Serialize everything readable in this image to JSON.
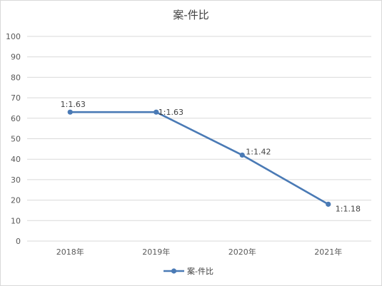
{
  "chart_data": {
    "type": "line",
    "title": "案-件比",
    "categories": [
      "2018年",
      "2019年",
      "2020年",
      "2021年"
    ],
    "series": [
      {
        "name": "案-件比",
        "values": [
          63,
          63,
          42,
          18
        ],
        "labels": [
          "1:1.63",
          "1:1.63",
          "1:1.42",
          "1:1.18"
        ],
        "color": "#4a7ab5"
      }
    ],
    "ylim": [
      0,
      100
    ],
    "yticks": [
      "0",
      "10",
      "20",
      "30",
      "40",
      "50",
      "60",
      "70",
      "80",
      "90",
      "100"
    ],
    "grid": true,
    "legend_position": "bottom"
  }
}
